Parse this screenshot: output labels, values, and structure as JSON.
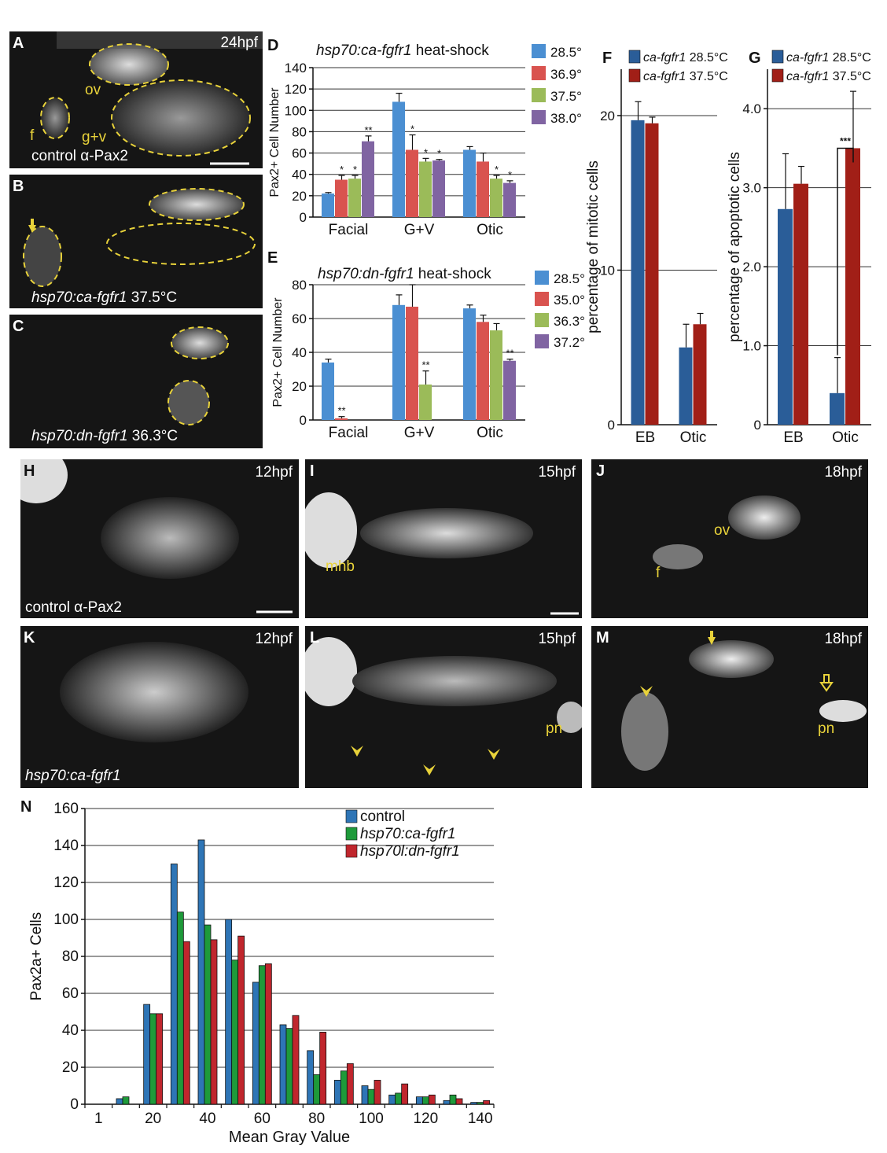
{
  "images": {
    "A": {
      "letter": "A",
      "time": "24hpf",
      "caption": "control α-Pax2",
      "labels": [
        "ov",
        "g+v",
        "f"
      ]
    },
    "B": {
      "letter": "B",
      "caption_italic": "hsp70:ca-fgfr1",
      "caption_rest": " 37.5°C"
    },
    "C": {
      "letter": "C",
      "caption_italic": "hsp70:dn-fgfr1",
      "caption_rest": " 36.3°C"
    },
    "H": {
      "letter": "H",
      "time": "12hpf",
      "caption": "control α-Pax2"
    },
    "I": {
      "letter": "I",
      "time": "15hpf",
      "labels": [
        "mhb"
      ]
    },
    "J": {
      "letter": "J",
      "time": "18hpf",
      "labels": [
        "ov",
        "f"
      ]
    },
    "K": {
      "letter": "K",
      "time": "12hpf",
      "caption_italic": "hsp70:ca-fgfr1"
    },
    "L": {
      "letter": "L",
      "time": "15hpf",
      "labels": [
        "pn"
      ]
    },
    "M": {
      "letter": "M",
      "time": "18hpf",
      "labels": [
        "pn"
      ]
    }
  },
  "chart_data": [
    {
      "panel": "D",
      "type": "bar",
      "title_italic": "hsp70:ca-fgfr1",
      "title_rest": " heat-shock",
      "ylabel": "Pax2+ Cell Number",
      "ylim": [
        0,
        140
      ],
      "yticks": [
        0,
        20,
        40,
        60,
        80,
        100,
        120,
        140
      ],
      "categories": [
        "Facial",
        "G+V",
        "Otic"
      ],
      "series": [
        {
          "name": "28.5°",
          "color": "#4b8fd2",
          "values": [
            22,
            108,
            63
          ],
          "err": [
            1,
            8,
            3
          ],
          "sig": [
            "",
            "",
            ""
          ]
        },
        {
          "name": "36.9°",
          "color": "#d9534f",
          "values": [
            35,
            63,
            52
          ],
          "err": [
            4,
            14,
            8
          ],
          "sig": [
            "*",
            "*",
            ""
          ]
        },
        {
          "name": "37.5°",
          "color": "#9bbb59",
          "values": [
            36,
            52,
            36
          ],
          "err": [
            3,
            3,
            3
          ],
          "sig": [
            "*",
            "*",
            "*"
          ]
        },
        {
          "name": "38.0°",
          "color": "#8064a2",
          "values": [
            71,
            53,
            32
          ],
          "err": [
            5,
            1,
            2
          ],
          "sig": [
            "**",
            "*",
            "*"
          ]
        }
      ],
      "legend": "right"
    },
    {
      "panel": "E",
      "type": "bar",
      "title_italic": "hsp70:dn-fgfr1",
      "title_rest": " heat-shock",
      "ylabel": "Pax2+ Cell Number",
      "ylim": [
        0,
        80
      ],
      "yticks": [
        0,
        20,
        40,
        60,
        80
      ],
      "categories": [
        "Facial",
        "G+V",
        "Otic"
      ],
      "series": [
        {
          "name": "28.5°",
          "color": "#4b8fd2",
          "values": [
            34,
            68,
            66
          ],
          "err": [
            2,
            6,
            2
          ],
          "sig": [
            "",
            "",
            ""
          ]
        },
        {
          "name": "35.0°",
          "color": "#d9534f",
          "values": [
            1,
            67,
            58
          ],
          "err": [
            1,
            13,
            4
          ],
          "sig": [
            "**",
            "",
            ""
          ]
        },
        {
          "name": "36.3°",
          "color": "#9bbb59",
          "values": [
            0,
            21,
            53
          ],
          "err": [
            0,
            8,
            4
          ],
          "sig": [
            "",
            "**",
            ""
          ]
        },
        {
          "name": "37.2°",
          "color": "#8064a2",
          "values": [
            0,
            0,
            35
          ],
          "err": [
            0,
            0,
            1
          ],
          "sig": [
            "",
            "",
            "**"
          ]
        }
      ],
      "legend": "right"
    },
    {
      "panel": "F",
      "type": "bar",
      "ylabel": "percentage of mitotic cells",
      "ylim": [
        0,
        23
      ],
      "yticks": [
        0,
        10,
        20
      ],
      "categories": [
        "EB",
        "Otic"
      ],
      "series": [
        {
          "name": "28.5°C",
          "name_italic": "ca-fgfr1",
          "color": "#2a5d98",
          "values": [
            19.7,
            5
          ],
          "err": [
            1.2,
            1.5
          ]
        },
        {
          "name": "37.5°C",
          "name_italic": "ca-fgfr1",
          "color": "#a11f17",
          "values": [
            19.5,
            6.5
          ],
          "err": [
            0.4,
            0.7
          ]
        }
      ],
      "legend": "top"
    },
    {
      "panel": "G",
      "type": "bar",
      "ylabel": "percentage of apoptotic cells",
      "ylim": [
        0,
        4.5
      ],
      "yticks": [
        "0",
        "1.0",
        "2.0",
        "3.0",
        "4.0"
      ],
      "categories": [
        "EB",
        "Otic"
      ],
      "series": [
        {
          "name": "28.5°C",
          "name_italic": "ca-fgfr1",
          "color": "#2a5d98",
          "values": [
            2.73,
            0.4
          ],
          "err": [
            0.7,
            0.45
          ]
        },
        {
          "name": "37.5°C",
          "name_italic": "ca-fgfr1",
          "color": "#a11f17",
          "values": [
            3.05,
            3.5
          ],
          "err": [
            0.22,
            0.72
          ]
        }
      ],
      "annotation": "***",
      "legend": "top"
    },
    {
      "panel": "N",
      "type": "bar",
      "ylabel": "Pax2a+ Cells",
      "xlabel": "Mean Gray Value",
      "ylim": [
        0,
        160
      ],
      "yticks": [
        0,
        20,
        40,
        60,
        80,
        100,
        120,
        140,
        160
      ],
      "categories": [
        "1",
        "",
        "20",
        "",
        "40",
        "",
        "60",
        "",
        "80",
        "",
        "100",
        "",
        "120",
        "",
        "140"
      ],
      "xtick_labels": [
        "1",
        "20",
        "40",
        "60",
        "80",
        "100",
        "120",
        "140"
      ],
      "series": [
        {
          "name": "control",
          "name_italic": "",
          "color": "#2e75b6",
          "values": [
            0,
            3,
            54,
            130,
            143,
            100,
            66,
            43,
            29,
            13,
            10,
            5,
            4,
            2,
            1
          ]
        },
        {
          "name": "hsp70:ca-fgfr1",
          "name_italic": "hsp70:ca-fgfr1",
          "color": "#1e9a3a",
          "values": [
            0,
            4,
            49,
            104,
            97,
            78,
            75,
            41,
            16,
            18,
            8,
            6,
            4,
            5,
            1
          ]
        },
        {
          "name": "hsp70l:dn-fgfr1",
          "name_italic": "hsp70l:dn-fgfr1",
          "color": "#c0262d",
          "values": [
            0,
            0,
            49,
            88,
            89,
            91,
            76,
            48,
            39,
            22,
            13,
            11,
            5,
            3,
            2
          ]
        }
      ],
      "legend": "top"
    }
  ]
}
